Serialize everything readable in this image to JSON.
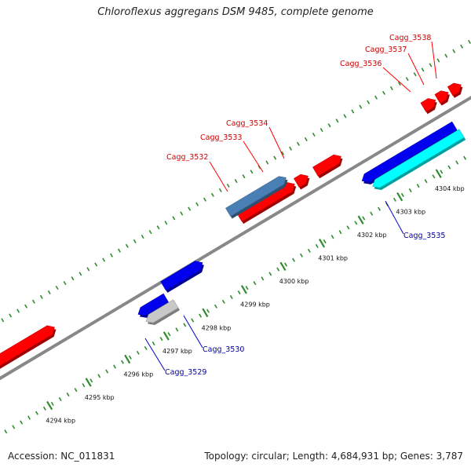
{
  "title": "Chloroflexus aggregans DSM 9485, complete genome",
  "footer": {
    "accession": "Accession: NC_011831",
    "genome_info": "Topology: circular; Length: 4,684,931 bp; Genes: 3,787"
  },
  "colors": {
    "backbone": "#888888",
    "tick": "#2e8b2e",
    "label_forward": "#cc0000",
    "label_reverse": "#00009c",
    "leader_forward": "#ff0000",
    "leader_reverse": "#0000cc"
  },
  "scale_ticks": [
    {
      "label": "4294 kbp"
    },
    {
      "label": "4295 kbp"
    },
    {
      "label": "4296 kbp"
    },
    {
      "label": "4297 kbp"
    },
    {
      "label": "4298 kbp"
    },
    {
      "label": "4299 kbp"
    },
    {
      "label": "4300 kbp"
    },
    {
      "label": "4301 kbp"
    },
    {
      "label": "4302 kbp"
    },
    {
      "label": "4303 kbp"
    },
    {
      "label": "4304 kbp"
    }
  ],
  "genes": [
    {
      "strand": "forward",
      "color": "#ff0000"
    },
    {
      "strand": "forward",
      "color": "#ff0000"
    },
    {
      "strand": "forward",
      "color": "#ff0000"
    },
    {
      "strand": "forward",
      "color": "#ff0000"
    },
    {
      "strand": "forward",
      "color": "#ff0000"
    },
    {
      "strand": "forward",
      "color": "#ff0000"
    },
    {
      "strand": "forward",
      "color": "#ff0000"
    },
    {
      "strand": "forward",
      "color": "#4a7fb5"
    },
    {
      "strand": "reverse",
      "color": "#0000ee"
    },
    {
      "strand": "reverse",
      "color": "#0000ee"
    },
    {
      "strand": "reverse",
      "color": "#c8c8c8"
    },
    {
      "strand": "reverse",
      "color": "#0000ee"
    },
    {
      "strand": "reverse",
      "color": "#00ffff"
    }
  ],
  "gene_labels": [
    {
      "text": "Cagg_3532",
      "strand": "forward"
    },
    {
      "text": "Cagg_3533",
      "strand": "forward"
    },
    {
      "text": "Cagg_3534",
      "strand": "forward"
    },
    {
      "text": "Cagg_3536",
      "strand": "forward"
    },
    {
      "text": "Cagg_3537",
      "strand": "forward"
    },
    {
      "text": "Cagg_3538",
      "strand": "forward"
    },
    {
      "text": "Cagg_3529",
      "strand": "reverse"
    },
    {
      "text": "Cagg_3530",
      "strand": "reverse"
    },
    {
      "text": "Cagg_3535",
      "strand": "reverse"
    }
  ]
}
